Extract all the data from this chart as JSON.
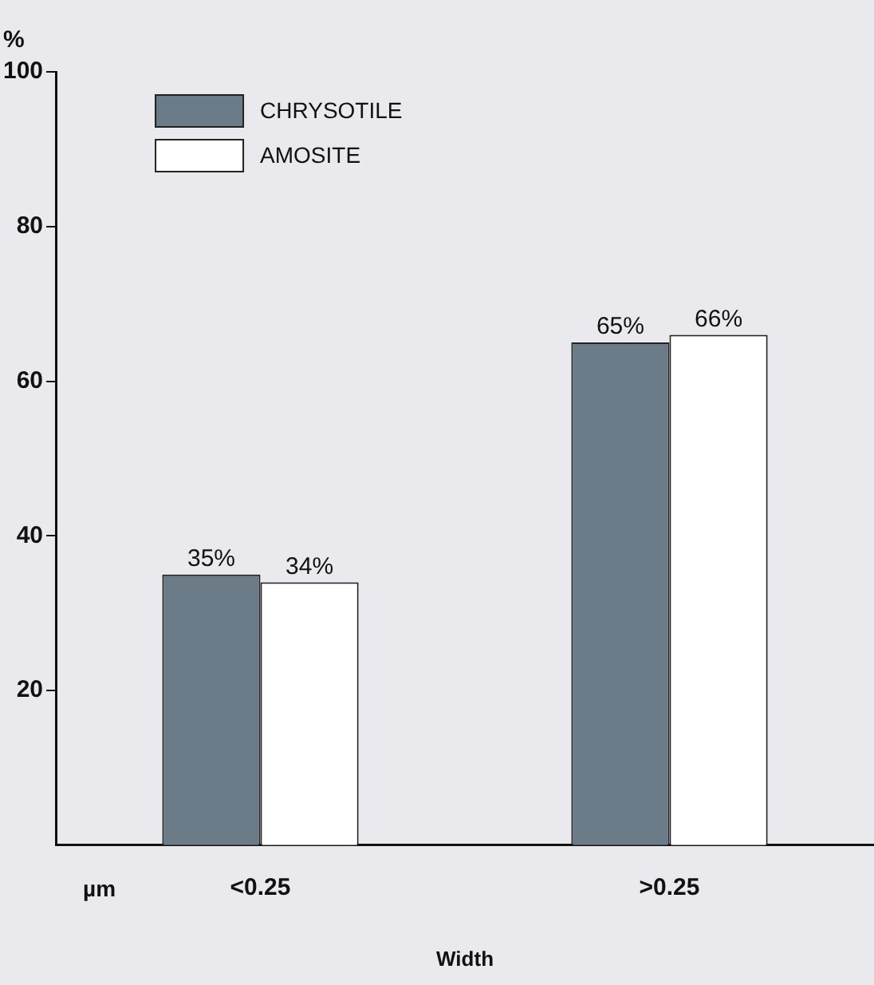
{
  "chart_data": {
    "type": "bar",
    "ylabel": "%",
    "xlabel": "Width",
    "categories": [
      "<0.25",
      ">0.25"
    ],
    "series": [
      {
        "name": "CHRYSOTILE",
        "color": "#6b7b88",
        "values": [
          35,
          65
        ],
        "value_labels": [
          "35%",
          "65%"
        ]
      },
      {
        "name": "AMOSITE",
        "color": "#ffffff",
        "values": [
          34,
          66
        ],
        "value_labels": [
          "34%",
          "66%"
        ]
      }
    ],
    "ylim": [
      0,
      100
    ],
    "yticks": [
      20,
      40,
      60,
      80,
      100
    ],
    "grid": false,
    "legend": "top left",
    "annotations": [
      "µm"
    ]
  }
}
